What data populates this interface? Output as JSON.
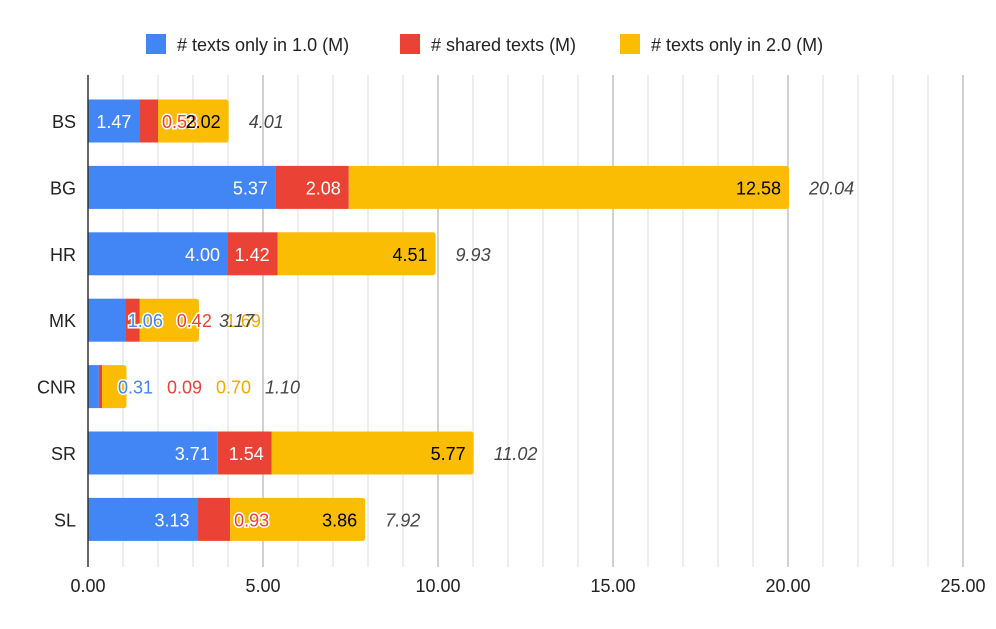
{
  "chart_data": {
    "type": "bar",
    "orientation": "horizontal",
    "stacked": true,
    "categories": [
      "BS",
      "BG",
      "HR",
      "MK",
      "CNR",
      "SR",
      "SL"
    ],
    "series": [
      {
        "name": "# texts only in 1.0 (M)",
        "color": "#4285F4",
        "values": [
          1.47,
          5.37,
          4.0,
          1.06,
          0.31,
          3.71,
          3.13
        ],
        "labels": [
          "1.47",
          "5.37",
          "4.00",
          "1.06",
          "0.31",
          "3.71",
          "3.13"
        ]
      },
      {
        "name": "# shared texts (M)",
        "color": "#EA4335",
        "values": [
          0.53,
          2.08,
          1.42,
          0.42,
          0.09,
          1.54,
          0.93
        ],
        "labels": [
          "0.53",
          "2.08",
          "1.42",
          "0.42",
          "0.09",
          "1.54",
          "0.93"
        ]
      },
      {
        "name": "# texts only in 2.0 (M)",
        "color": "#FBBC04",
        "values": [
          2.02,
          12.58,
          4.51,
          1.69,
          0.7,
          5.77,
          3.86
        ],
        "labels": [
          "2.02",
          "12.58",
          "4.51",
          "1.69",
          "0.70",
          "5.77",
          "3.86"
        ]
      }
    ],
    "totals": [
      "4.01",
      "20.04",
      "9.93",
      "3.17",
      "1.10",
      "11.02",
      "7.92"
    ],
    "x_ticks": [
      "0.00",
      "5.00",
      "10.00",
      "15.00",
      "20.00",
      "25.00"
    ],
    "xlim": [
      0,
      25
    ],
    "grid": true,
    "legend_position": "top"
  }
}
